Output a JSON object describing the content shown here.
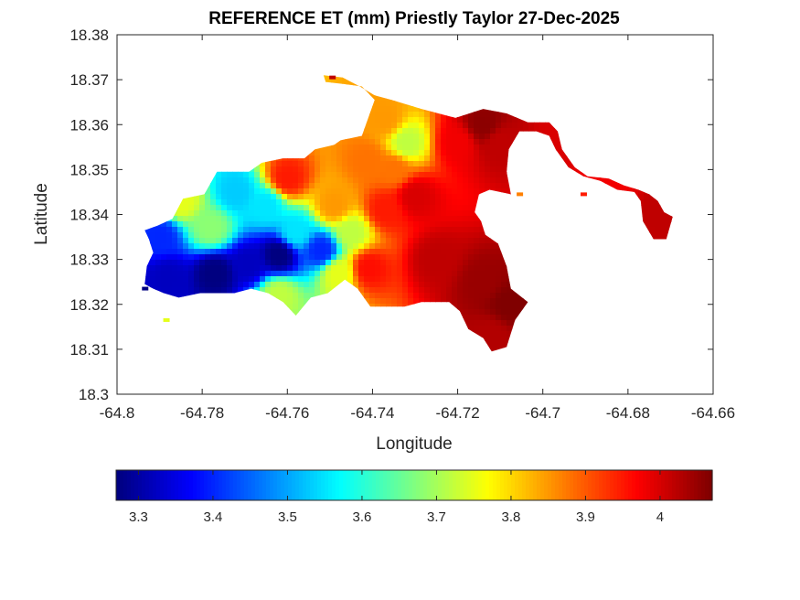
{
  "chart_data": {
    "type": "heatmap",
    "title": "REFERENCE ET (mm) Priestly Taylor 27-Dec-2025",
    "xlabel": "Longitude",
    "ylabel": "Latitude",
    "xlim": [
      -64.8,
      -64.66
    ],
    "ylim": [
      18.3,
      18.38
    ],
    "xticks": [
      -64.8,
      -64.78,
      -64.76,
      -64.74,
      -64.72,
      -64.7,
      -64.68,
      -64.66
    ],
    "xtick_labels": [
      "-64.8",
      "-64.78",
      "-64.76",
      "-64.74",
      "-64.72",
      "-64.7",
      "-64.68",
      "-64.66"
    ],
    "yticks": [
      18.3,
      18.31,
      18.32,
      18.33,
      18.34,
      18.35,
      18.36,
      18.37,
      18.38
    ],
    "ytick_labels": [
      "18.3",
      "18.31",
      "18.32",
      "18.33",
      "18.34",
      "18.35",
      "18.36",
      "18.37",
      "18.38"
    ],
    "grid": false,
    "colormap": "jet",
    "colorbar": {
      "orientation": "horizontal",
      "location": "below",
      "range": [
        3.27,
        4.07
      ],
      "ticks": [
        3.3,
        3.4,
        3.5,
        3.6,
        3.7,
        3.8,
        3.9,
        4.0
      ],
      "tick_labels": [
        "3.3",
        "3.4",
        "3.5",
        "3.6",
        "3.7",
        "3.8",
        "3.9",
        "4"
      ]
    },
    "region_outline": [
      [
        -64.7935,
        18.3365
      ],
      [
        -64.7905,
        18.3375
      ],
      [
        -64.787,
        18.339
      ],
      [
        -64.7845,
        18.3435
      ],
      [
        -64.7795,
        18.3445
      ],
      [
        -64.7765,
        18.3495
      ],
      [
        -64.769,
        18.3495
      ],
      [
        -64.766,
        18.3515
      ],
      [
        -64.761,
        18.3525
      ],
      [
        -64.756,
        18.3525
      ],
      [
        -64.7535,
        18.3545
      ],
      [
        -64.749,
        18.3555
      ],
      [
        -64.7475,
        18.3565
      ],
      [
        -64.7425,
        18.3575
      ],
      [
        -64.7395,
        18.3655
      ],
      [
        -64.7425,
        18.3685
      ],
      [
        -64.7465,
        18.369
      ],
      [
        -64.751,
        18.3695
      ],
      [
        -64.7515,
        18.371
      ],
      [
        -64.747,
        18.3705
      ],
      [
        -64.743,
        18.3685
      ],
      [
        -64.7395,
        18.3665
      ],
      [
        -64.7355,
        18.3655
      ],
      [
        -64.7285,
        18.3635
      ],
      [
        -64.7205,
        18.3615
      ],
      [
        -64.714,
        18.3635
      ],
      [
        -64.7085,
        18.3625
      ],
      [
        -64.7035,
        18.3605
      ],
      [
        -64.6985,
        18.3605
      ],
      [
        -64.6965,
        18.3585
      ],
      [
        -64.6955,
        18.3545
      ],
      [
        -64.6925,
        18.3505
      ],
      [
        -64.6895,
        18.3485
      ],
      [
        -64.6845,
        18.348
      ],
      [
        -64.681,
        18.3465
      ],
      [
        -64.6775,
        18.3455
      ],
      [
        -64.675,
        18.3445
      ],
      [
        -64.673,
        18.343
      ],
      [
        -64.6715,
        18.3405
      ],
      [
        -64.6695,
        18.3395
      ],
      [
        -64.671,
        18.3345
      ],
      [
        -64.674,
        18.3345
      ],
      [
        -64.6765,
        18.3385
      ],
      [
        -64.677,
        18.343
      ],
      [
        -64.6785,
        18.345
      ],
      [
        -64.6825,
        18.3455
      ],
      [
        -64.6865,
        18.3475
      ],
      [
        -64.6905,
        18.3485
      ],
      [
        -64.694,
        18.3505
      ],
      [
        -64.697,
        18.3545
      ],
      [
        -64.6985,
        18.3575
      ],
      [
        -64.7015,
        18.3585
      ],
      [
        -64.7055,
        18.3585
      ],
      [
        -64.708,
        18.3545
      ],
      [
        -64.7085,
        18.3495
      ],
      [
        -64.7075,
        18.3445
      ],
      [
        -64.7125,
        18.3455
      ],
      [
        -64.715,
        18.3445
      ],
      [
        -64.716,
        18.3405
      ],
      [
        -64.7145,
        18.3385
      ],
      [
        -64.7135,
        18.3355
      ],
      [
        -64.7105,
        18.3335
      ],
      [
        -64.7085,
        18.3285
      ],
      [
        -64.7075,
        18.3235
      ],
      [
        -64.7035,
        18.3205
      ],
      [
        -64.7065,
        18.3165
      ],
      [
        -64.7085,
        18.3105
      ],
      [
        -64.712,
        18.3095
      ],
      [
        -64.714,
        18.3125
      ],
      [
        -64.7175,
        18.3145
      ],
      [
        -64.7195,
        18.3185
      ],
      [
        -64.722,
        18.3205
      ],
      [
        -64.7285,
        18.3205
      ],
      [
        -64.7325,
        18.3195
      ],
      [
        -64.7365,
        18.3195
      ],
      [
        -64.7405,
        18.3195
      ],
      [
        -64.7435,
        18.3235
      ],
      [
        -64.7465,
        18.3255
      ],
      [
        -64.7505,
        18.3225
      ],
      [
        -64.7545,
        18.3215
      ],
      [
        -64.758,
        18.3175
      ],
      [
        -64.761,
        18.3205
      ],
      [
        -64.7645,
        18.3225
      ],
      [
        -64.7685,
        18.3235
      ],
      [
        -64.7725,
        18.3225
      ],
      [
        -64.776,
        18.3225
      ],
      [
        -64.7805,
        18.3225
      ],
      [
        -64.7855,
        18.3215
      ],
      [
        -64.789,
        18.3225
      ],
      [
        -64.7915,
        18.3235
      ],
      [
        -64.7935,
        18.3245
      ],
      [
        -64.793,
        18.3285
      ],
      [
        -64.7915,
        18.3315
      ],
      [
        -64.7925,
        18.3345
      ]
    ],
    "islets": [
      {
        "lon": -64.7495,
        "lat": 18.3705,
        "et": 4.02
      },
      {
        "lon": -64.7885,
        "lat": 18.3165,
        "et": 3.75
      },
      {
        "lon": -64.7055,
        "lat": 18.3445,
        "et": 3.87
      },
      {
        "lon": -64.6905,
        "lat": 18.3445,
        "et": 3.95
      },
      {
        "lon": -64.7935,
        "lat": 18.3235,
        "et": 3.27
      }
    ],
    "field_samples": [
      {
        "lon": -64.79,
        "lat": 18.335,
        "et": 3.4
      },
      {
        "lon": -64.785,
        "lat": 18.343,
        "et": 3.75
      },
      {
        "lon": -64.788,
        "lat": 18.326,
        "et": 3.32
      },
      {
        "lon": -64.777,
        "lat": 18.327,
        "et": 3.27
      },
      {
        "lon": -64.778,
        "lat": 18.337,
        "et": 3.68
      },
      {
        "lon": -64.772,
        "lat": 18.345,
        "et": 3.53
      },
      {
        "lon": -64.769,
        "lat": 18.329,
        "et": 3.32
      },
      {
        "lon": -64.762,
        "lat": 18.331,
        "et": 3.27
      },
      {
        "lon": -64.765,
        "lat": 18.342,
        "et": 3.55
      },
      {
        "lon": -64.76,
        "lat": 18.348,
        "et": 3.95
      },
      {
        "lon": -64.758,
        "lat": 18.336,
        "et": 3.55
      },
      {
        "lon": -64.752,
        "lat": 18.332,
        "et": 3.4
      },
      {
        "lon": -64.762,
        "lat": 18.322,
        "et": 3.72
      },
      {
        "lon": -64.748,
        "lat": 18.327,
        "et": 3.75
      },
      {
        "lon": -64.749,
        "lat": 18.342,
        "et": 3.85
      },
      {
        "lon": -64.745,
        "lat": 18.336,
        "et": 3.72
      },
      {
        "lon": -64.741,
        "lat": 18.352,
        "et": 3.88
      },
      {
        "lon": -64.735,
        "lat": 18.35,
        "et": 3.88
      },
      {
        "lon": -64.732,
        "lat": 18.356,
        "et": 3.72
      },
      {
        "lon": -64.737,
        "lat": 18.361,
        "et": 3.85
      },
      {
        "lon": -64.741,
        "lat": 18.328,
        "et": 3.96
      },
      {
        "lon": -64.737,
        "lat": 18.341,
        "et": 3.95
      },
      {
        "lon": -64.73,
        "lat": 18.344,
        "et": 4.0
      },
      {
        "lon": -64.72,
        "lat": 18.356,
        "et": 3.98
      },
      {
        "lon": -64.714,
        "lat": 18.36,
        "et": 4.06
      },
      {
        "lon": -64.71,
        "lat": 18.356,
        "et": 4.02
      },
      {
        "lon": -64.725,
        "lat": 18.33,
        "et": 4.02
      },
      {
        "lon": -64.714,
        "lat": 18.325,
        "et": 4.05
      },
      {
        "lon": -64.708,
        "lat": 18.32,
        "et": 4.07
      },
      {
        "lon": -64.712,
        "lat": 18.313,
        "et": 4.03
      },
      {
        "lon": -64.695,
        "lat": 18.357,
        "et": 4.0
      },
      {
        "lon": -64.685,
        "lat": 18.347,
        "et": 3.98
      },
      {
        "lon": -64.672,
        "lat": 18.34,
        "et": 4.02
      }
    ]
  }
}
